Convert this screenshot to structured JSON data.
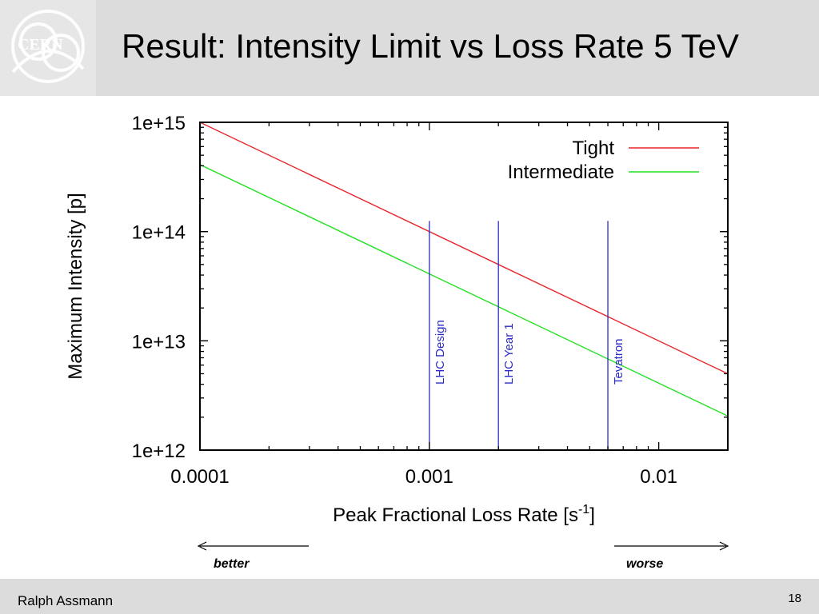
{
  "header": {
    "title": "Result: Intensity Limit vs Loss Rate 5 TeV",
    "logo_text": "CERN",
    "logo_icon": "cern-logo-icon"
  },
  "chart_data": {
    "type": "line",
    "title": "",
    "xlabel": "Peak Fractional Loss Rate [s",
    "xlabel_sup": "-1",
    "xlabel_end": "]",
    "ylabel": "Maximum Intensity [p]",
    "xscale": "log",
    "yscale": "log",
    "xlim": [
      0.0001,
      0.02
    ],
    "ylim": [
      1000000000000.0,
      1000000000000000.0
    ],
    "xticks": [
      0.0001,
      0.001,
      0.01
    ],
    "xtick_labels": [
      "0.0001",
      "0.001",
      "0.01"
    ],
    "yticks": [
      1000000000000.0,
      10000000000000.0,
      100000000000000.0,
      1000000000000000.0
    ],
    "ytick_labels": [
      "1e+12",
      "1e+13",
      "1e+14",
      "1e+15"
    ],
    "grid": false,
    "legend_position": "top-right",
    "series": [
      {
        "name": "Tight",
        "color": "#e8262c",
        "x": [
          0.0001,
          0.02
        ],
        "y": [
          1000000000000000.0,
          5000000000000.0
        ]
      },
      {
        "name": "Intermediate",
        "color": "#24e024",
        "x": [
          0.0001,
          0.02
        ],
        "y": [
          410000000000000.0,
          2050000000000.0
        ]
      }
    ],
    "vlines": [
      {
        "x": 0.001,
        "label": "LHC Design",
        "color": "#2a2ac8"
      },
      {
        "x": 0.002,
        "label": "LHC Year 1",
        "color": "#2a2ac8"
      },
      {
        "x": 0.006,
        "label": "Tevatron",
        "color": "#2a2ac8"
      }
    ]
  },
  "annotations": {
    "better": "better",
    "worse": "worse"
  },
  "footer": {
    "author": "Ralph Assmann",
    "page": "18"
  }
}
